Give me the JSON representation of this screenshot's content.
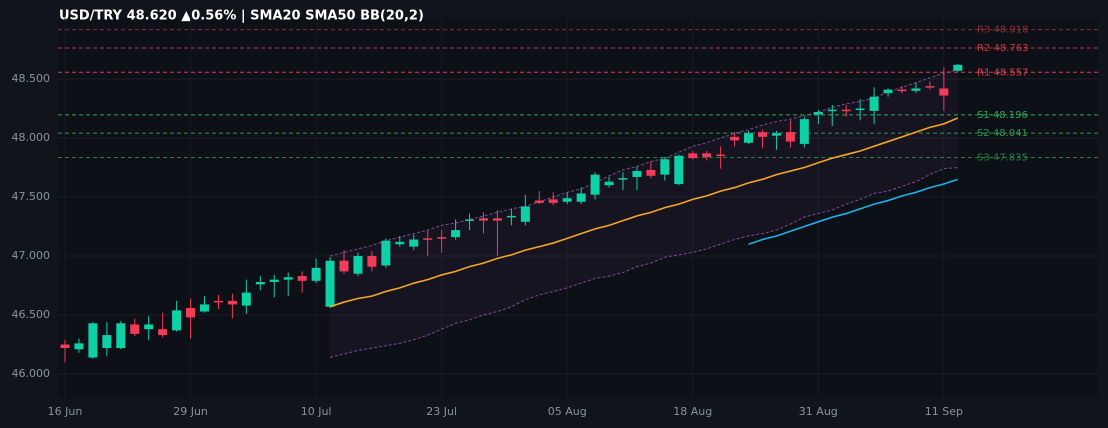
{
  "chart_data": {
    "type": "candlestick",
    "title": "USD/TRY  48.620  ▲0.56%  |  SMA20  SMA50  BB(20,2)",
    "categories": [
      "16 Jun",
      null,
      null,
      null,
      null,
      null,
      null,
      null,
      null,
      "29 Jun",
      null,
      null,
      null,
      null,
      null,
      null,
      null,
      null,
      "10 Jul",
      null,
      null,
      null,
      null,
      null,
      null,
      null,
      null,
      "23 Jul",
      null,
      null,
      null,
      null,
      null,
      null,
      null,
      null,
      "05 Aug",
      null,
      null,
      null,
      null,
      null,
      null,
      null,
      null,
      "18 Aug",
      null,
      null,
      null,
      null,
      null,
      null,
      null,
      null,
      "31 Aug",
      null,
      null,
      null,
      null,
      null,
      null,
      null,
      null,
      "11 Sep",
      null
    ],
    "open": [
      46.25,
      46.21,
      46.14,
      46.22,
      46.22,
      46.42,
      46.38,
      46.38,
      46.37,
      46.56,
      46.53,
      46.62,
      46.62,
      46.58,
      46.76,
      46.78,
      46.8,
      46.83,
      46.79,
      46.57,
      46.96,
      46.85,
      47.0,
      46.92,
      47.1,
      47.08,
      47.15,
      47.16,
      47.16,
      47.3,
      47.32,
      47.32,
      47.33,
      47.29,
      47.47,
      47.48,
      47.46,
      47.46,
      47.52,
      47.6,
      47.65,
      47.67,
      47.73,
      47.69,
      47.61,
      47.87,
      47.87,
      47.86,
      48.01,
      47.96,
      48.05,
      48.02,
      48.05,
      47.95,
      48.2,
      48.23,
      48.24,
      48.24,
      48.23,
      48.38,
      48.41,
      48.4,
      48.44,
      48.42,
      48.57
    ],
    "high": [
      46.29,
      46.3,
      46.44,
      46.44,
      46.45,
      46.47,
      46.49,
      46.52,
      46.62,
      46.64,
      46.66,
      46.67,
      46.68,
      46.8,
      46.83,
      46.84,
      46.86,
      46.87,
      46.98,
      46.99,
      47.05,
      47.03,
      47.04,
      47.15,
      47.17,
      47.18,
      47.22,
      47.22,
      47.31,
      47.36,
      47.37,
      47.39,
      47.4,
      47.52,
      47.55,
      47.54,
      47.54,
      47.58,
      47.71,
      47.67,
      47.71,
      47.76,
      47.8,
      47.84,
      47.86,
      47.89,
      47.89,
      47.93,
      48.05,
      48.06,
      48.07,
      48.06,
      48.15,
      48.18,
      48.24,
      48.28,
      48.28,
      48.33,
      48.43,
      48.42,
      48.44,
      48.47,
      48.48,
      48.6,
      48.63
    ],
    "low": [
      46.1,
      46.18,
      46.13,
      46.15,
      46.21,
      46.32,
      46.29,
      46.31,
      46.36,
      46.3,
      46.52,
      46.55,
      46.47,
      46.51,
      46.71,
      46.65,
      46.66,
      46.69,
      46.77,
      46.56,
      46.85,
      46.83,
      46.87,
      46.9,
      47.08,
      47.05,
      47.0,
      47.03,
      47.14,
      47.22,
      47.19,
      47.0,
      47.26,
      47.26,
      47.44,
      47.43,
      47.44,
      47.44,
      47.48,
      47.58,
      47.56,
      47.56,
      47.66,
      47.64,
      47.6,
      47.82,
      47.81,
      47.74,
      47.93,
      47.95,
      47.92,
      47.9,
      47.92,
      47.92,
      48.12,
      48.1,
      48.18,
      48.15,
      48.12,
      48.35,
      48.38,
      48.38,
      48.41,
      48.23,
      48.56
    ],
    "close": [
      46.22,
      46.26,
      46.43,
      46.33,
      46.43,
      46.34,
      46.42,
      46.33,
      46.54,
      46.48,
      46.59,
      46.61,
      46.59,
      46.69,
      46.78,
      46.8,
      46.82,
      46.79,
      46.9,
      46.96,
      46.87,
      47.0,
      46.91,
      47.13,
      47.12,
      47.14,
      47.14,
      47.15,
      47.22,
      47.31,
      47.3,
      47.3,
      47.34,
      47.42,
      47.45,
      47.45,
      47.49,
      47.53,
      47.69,
      47.63,
      47.66,
      47.72,
      47.68,
      47.82,
      47.85,
      47.83,
      47.84,
      47.85,
      47.98,
      48.04,
      48.01,
      48.04,
      47.97,
      48.16,
      48.22,
      48.24,
      48.23,
      48.25,
      48.35,
      48.41,
      48.4,
      48.42,
      48.43,
      48.36,
      48.62
    ],
    "up_color": "#0fd1a8",
    "down_color": "#f23c5a",
    "lines": [
      {
        "color": "#f5a623",
        "values": [
          null,
          null,
          null,
          null,
          null,
          null,
          null,
          null,
          null,
          null,
          null,
          null,
          null,
          null,
          null,
          null,
          null,
          null,
          null,
          46.57,
          46.61,
          46.64,
          46.66,
          46.7,
          46.73,
          46.77,
          46.8,
          46.84,
          46.87,
          46.91,
          46.94,
          46.98,
          47.01,
          47.05,
          47.08,
          47.11,
          47.15,
          47.19,
          47.23,
          47.26,
          47.3,
          47.34,
          47.37,
          47.41,
          47.44,
          47.48,
          47.51,
          47.55,
          47.58,
          47.62,
          47.65,
          47.69,
          47.72,
          47.75,
          47.79,
          47.83,
          47.86,
          47.89,
          47.93,
          47.97,
          48.01,
          48.05,
          48.09,
          48.12,
          48.17
        ]
      },
      {
        "color": "#1fb0e8",
        "values": [
          null,
          null,
          null,
          null,
          null,
          null,
          null,
          null,
          null,
          null,
          null,
          null,
          null,
          null,
          null,
          null,
          null,
          null,
          null,
          null,
          null,
          null,
          null,
          null,
          null,
          null,
          null,
          null,
          null,
          null,
          null,
          null,
          null,
          null,
          null,
          null,
          null,
          null,
          null,
          null,
          null,
          null,
          null,
          null,
          null,
          null,
          null,
          null,
          null,
          47.1,
          47.14,
          47.17,
          47.21,
          47.25,
          47.29,
          47.33,
          47.36,
          47.4,
          47.44,
          47.47,
          47.51,
          47.54,
          47.58,
          47.61,
          47.65
        ]
      }
    ],
    "bands": {
      "color": "#9b59b6",
      "upper": [
        null,
        null,
        null,
        null,
        null,
        null,
        null,
        null,
        null,
        null,
        null,
        null,
        null,
        null,
        null,
        null,
        null,
        null,
        null,
        47.0,
        47.03,
        47.06,
        47.09,
        47.13,
        47.16,
        47.19,
        47.22,
        47.26,
        47.28,
        47.31,
        47.34,
        47.37,
        47.4,
        47.42,
        47.46,
        47.5,
        47.54,
        47.57,
        47.62,
        47.68,
        47.73,
        47.76,
        47.8,
        47.83,
        47.88,
        47.93,
        47.96,
        48.0,
        48.04,
        48.07,
        48.11,
        48.14,
        48.16,
        48.19,
        48.22,
        48.26,
        48.29,
        48.31,
        48.34,
        48.39,
        48.43,
        48.47,
        48.51,
        48.55,
        48.58
      ],
      "lower": [
        null,
        null,
        null,
        null,
        null,
        null,
        null,
        null,
        null,
        null,
        null,
        null,
        null,
        null,
        null,
        null,
        null,
        null,
        null,
        46.14,
        46.17,
        46.2,
        46.22,
        46.24,
        46.26,
        46.29,
        46.33,
        46.38,
        46.43,
        46.46,
        46.5,
        46.53,
        46.57,
        46.63,
        46.67,
        46.7,
        46.73,
        46.77,
        46.81,
        46.83,
        46.86,
        46.91,
        46.94,
        46.99,
        47.01,
        47.03,
        47.06,
        47.1,
        47.14,
        47.17,
        47.19,
        47.22,
        47.27,
        47.33,
        47.36,
        47.39,
        47.44,
        47.48,
        47.53,
        47.55,
        47.59,
        47.63,
        47.69,
        47.74,
        47.75
      ]
    },
    "levels": [
      {
        "label": "R3 48.918",
        "value": 48.918,
        "color": "#8a2f36"
      },
      {
        "label": "R2 48.763",
        "value": 48.763,
        "color": "#c0393f"
      },
      {
        "label": "R1 48.557",
        "value": 48.557,
        "color": "#d9414a"
      },
      {
        "label": "S1 48.196",
        "value": 48.196,
        "color": "#2fa858"
      },
      {
        "label": "S2 48.041",
        "value": 48.041,
        "color": "#2a9a50"
      },
      {
        "label": "S3 47.835",
        "value": 47.835,
        "color": "#237f43"
      }
    ],
    "ylim": [
      45.797,
      49.017
    ],
    "yticks": [
      {
        "value": 46,
        "label": "46.000"
      },
      {
        "value": 46.5,
        "label": "46.500"
      },
      {
        "value": 47,
        "label": "47.000"
      },
      {
        "value": 47.5,
        "label": "47.500"
      },
      {
        "value": 48,
        "label": "48.000"
      },
      {
        "value": 48.5,
        "label": "48.500"
      }
    ],
    "grid": true
  }
}
